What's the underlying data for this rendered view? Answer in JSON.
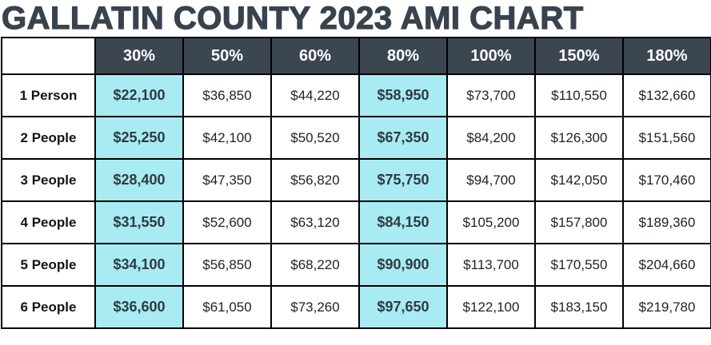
{
  "title": "GALLATIN COUNTY 2023 AMI CHART",
  "colors": {
    "header_bg": "#3b4651",
    "highlight_bg": "#a9ebf2",
    "title_text": "#39434e",
    "border": "#000000"
  },
  "chart_data": {
    "type": "table",
    "title": "GALLATIN COUNTY 2023 AMI CHART",
    "columns": [
      "",
      "30%",
      "50%",
      "60%",
      "80%",
      "100%",
      "150%",
      "180%"
    ],
    "highlighted_columns": [
      "30%",
      "80%"
    ],
    "rows": [
      {
        "label": "1 Person",
        "values": [
          "$22,100",
          "$36,850",
          "$44,220",
          "$58,950",
          "$73,700",
          "$110,550",
          "$132,660"
        ]
      },
      {
        "label": "2 People",
        "values": [
          "$25,250",
          "$42,100",
          "$50,520",
          "$67,350",
          "$84,200",
          "$126,300",
          "$151,560"
        ]
      },
      {
        "label": "3 People",
        "values": [
          "$28,400",
          "$47,350",
          "$56,820",
          "$75,750",
          "$94,700",
          "$142,050",
          "$170,460"
        ]
      },
      {
        "label": "4 People",
        "values": [
          "$31,550",
          "$52,600",
          "$63,120",
          "$84,150",
          "$105,200",
          "$157,800",
          "$189,360"
        ]
      },
      {
        "label": "5 People",
        "values": [
          "$34,100",
          "$56,850",
          "$68,220",
          "$90,900",
          "$113,700",
          "$170,550",
          "$204,660"
        ]
      },
      {
        "label": "6 People",
        "values": [
          "$36,600",
          "$61,050",
          "$73,260",
          "$97,650",
          "$122,100",
          "$183,150",
          "$219,780"
        ]
      }
    ]
  }
}
